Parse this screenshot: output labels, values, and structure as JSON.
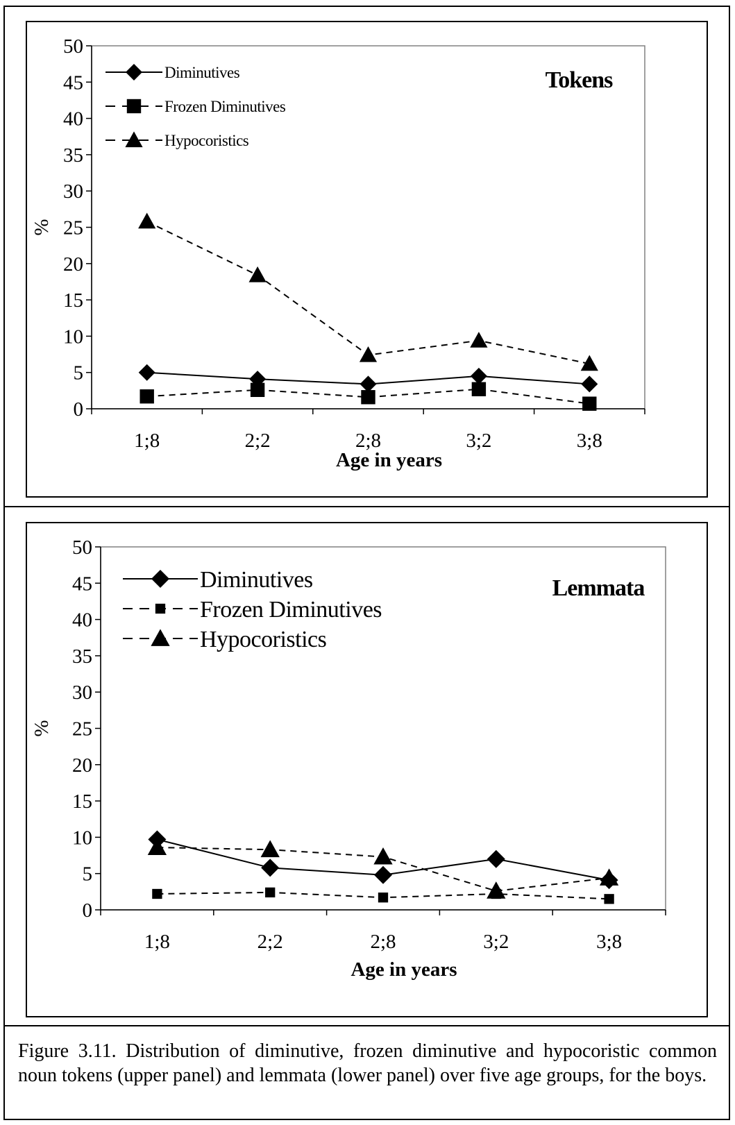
{
  "caption": "Figure 3.11. Distribution of diminutive, frozen diminutive and hypocoristic common noun tokens (upper panel) and lemmata (lower panel) over five age groups, for the boys.",
  "chart_data": [
    {
      "type": "line",
      "title": "Tokens",
      "xlabel": "Age in years",
      "ylabel": "%",
      "categories": [
        "1;8",
        "2;2",
        "2;8",
        "3;2",
        "3;8"
      ],
      "ylim": [
        0,
        50
      ],
      "yticks": [
        "0",
        "5",
        "10",
        "15",
        "20",
        "25",
        "30",
        "35",
        "40",
        "45",
        "50"
      ],
      "legend_position": "top-left",
      "grid": false,
      "series": [
        {
          "name": "Diminutives",
          "values": [
            5.0,
            4.1,
            3.4,
            4.5,
            3.4
          ],
          "marker": "diamond",
          "dash": "solid"
        },
        {
          "name": "Frozen Diminutives",
          "values": [
            1.7,
            2.6,
            1.6,
            2.7,
            0.7
          ],
          "marker": "square",
          "dash": "dashed"
        },
        {
          "name": "Hypocoristics",
          "values": [
            25.8,
            18.4,
            7.4,
            9.4,
            6.2
          ],
          "marker": "triangle",
          "dash": "dashed"
        }
      ]
    },
    {
      "type": "line",
      "title": "Lemmata",
      "xlabel": "Age in years",
      "ylabel": "%",
      "categories": [
        "1;8",
        "2;2",
        "2;8",
        "3;2",
        "3;8"
      ],
      "ylim": [
        0,
        50
      ],
      "yticks": [
        "0",
        "5",
        "10",
        "15",
        "20",
        "25",
        "30",
        "35",
        "40",
        "45",
        "50"
      ],
      "legend_position": "top-left",
      "grid": false,
      "series": [
        {
          "name": "Diminutives",
          "values": [
            9.7,
            5.8,
            4.8,
            7.0,
            4.1
          ],
          "marker": "diamond",
          "dash": "solid"
        },
        {
          "name": "Frozen Diminutives",
          "values": [
            2.2,
            2.4,
            1.7,
            2.2,
            1.5
          ],
          "marker": "square",
          "dash": "dashed"
        },
        {
          "name": "Hypocoristics",
          "values": [
            8.6,
            8.3,
            7.3,
            2.6,
            4.4
          ],
          "marker": "triangle",
          "dash": "dashed"
        }
      ]
    }
  ]
}
